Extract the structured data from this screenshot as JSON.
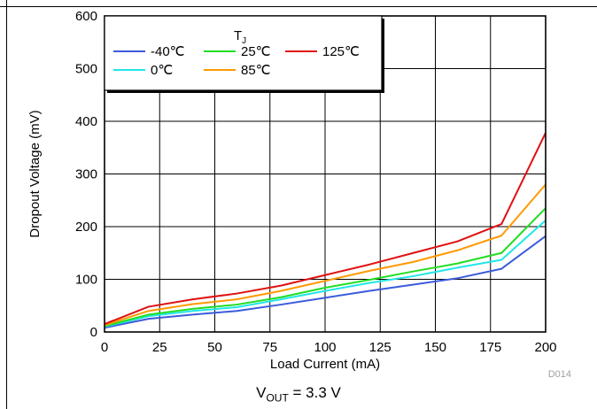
{
  "chart_data": {
    "type": "line",
    "title": "",
    "xlabel": "Load Current (mA)",
    "ylabel": "Dropout Voltage (mV)",
    "xlim": [
      0,
      200
    ],
    "ylim": [
      0,
      600
    ],
    "xticks": [
      "0",
      "25",
      "50",
      "75",
      "100",
      "125",
      "150",
      "175",
      "200"
    ],
    "yticks": [
      "0",
      "100",
      "200",
      "300",
      "400",
      "500",
      "600"
    ],
    "grid": true,
    "legend": {
      "title_main": "T",
      "title_sub": "J",
      "placement": "top-left"
    },
    "series": [
      {
        "name": "-40℃",
        "color": "#3b5bdb",
        "x": [
          0,
          20,
          40,
          60,
          80,
          100,
          120,
          140,
          160,
          180,
          200
        ],
        "y": [
          8,
          25,
          33,
          40,
          52,
          65,
          78,
          90,
          102,
          120,
          182
        ]
      },
      {
        "name": "0℃",
        "color": "#22e6e6",
        "x": [
          0,
          20,
          40,
          60,
          80,
          100,
          120,
          140,
          160,
          180,
          200
        ],
        "y": [
          10,
          30,
          40,
          47,
          62,
          78,
          93,
          106,
          122,
          137,
          212
        ]
      },
      {
        "name": "25℃",
        "color": "#22dd22",
        "x": [
          0,
          20,
          40,
          60,
          80,
          100,
          120,
          140,
          160,
          180,
          200
        ],
        "y": [
          11,
          33,
          44,
          52,
          66,
          84,
          99,
          115,
          130,
          150,
          235
        ]
      },
      {
        "name": "85℃",
        "color": "#ff9900",
        "x": [
          0,
          20,
          40,
          60,
          80,
          100,
          120,
          140,
          160,
          180,
          200
        ],
        "y": [
          13,
          40,
          53,
          62,
          78,
          97,
          116,
          133,
          155,
          183,
          280
        ]
      },
      {
        "name": "125℃",
        "color": "#e01010",
        "x": [
          0,
          20,
          40,
          60,
          80,
          100,
          120,
          140,
          160,
          180,
          200
        ],
        "y": [
          15,
          48,
          62,
          73,
          88,
          108,
          128,
          150,
          172,
          205,
          378
        ]
      }
    ]
  },
  "figure_code": "D014",
  "caption": {
    "prefix": "V",
    "subscript": "OUT",
    "suffix": " = 3.3 V"
  }
}
